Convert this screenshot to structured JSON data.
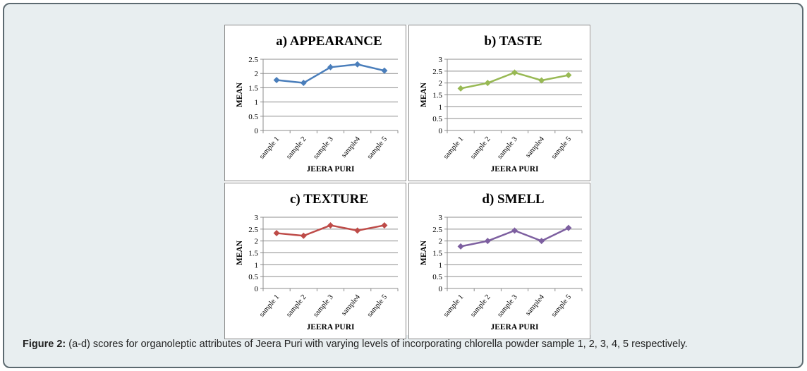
{
  "caption": {
    "label": "Figure 2:",
    "text": " (a-d) scores for organoleptic attributes of Jeera Puri with varying levels of incorporating chlorella powder sample 1, 2, 3, 4, 5 respectively."
  },
  "chart_data": [
    {
      "type": "line",
      "title": "a) APPEARANCE",
      "xlabel": "JEERA PURI",
      "ylabel": "MEAN",
      "categories": [
        "sample 1",
        "sample 2",
        "sample 3",
        "sample4",
        "sample 5"
      ],
      "series": [
        {
          "values": [
            1.77,
            1.67,
            2.22,
            2.32,
            2.1
          ]
        }
      ],
      "ylim": [
        0,
        2.5
      ],
      "yticks": [
        "0",
        "0.5",
        "1",
        "1.5",
        "2",
        "2.5"
      ],
      "ytick_values": [
        0,
        0.5,
        1,
        1.5,
        2,
        2.5
      ],
      "color": "#4a7ebb",
      "marker": "diamond",
      "grid": true
    },
    {
      "type": "line",
      "title": "b) TASTE",
      "xlabel": "JEERA PURI",
      "ylabel": "MEAN",
      "categories": [
        "sample 1",
        "sample 2",
        "sample 3",
        "sample4",
        "sample 5"
      ],
      "series": [
        {
          "values": [
            1.77,
            2.0,
            2.44,
            2.11,
            2.33
          ]
        }
      ],
      "ylim": [
        0,
        3
      ],
      "yticks": [
        "0",
        "0.5",
        "1",
        "1.5",
        "2",
        "2.5",
        "3"
      ],
      "ytick_values": [
        0,
        0.5,
        1,
        1.5,
        2,
        2.5,
        3
      ],
      "color": "#98b954",
      "marker": "diamond",
      "grid": true
    },
    {
      "type": "line",
      "title": "c) TEXTURE",
      "xlabel": "JEERA PURI",
      "ylabel": "MEAN",
      "categories": [
        "sample 1",
        "sample 2",
        "sample 3",
        "sample4",
        "sample 5"
      ],
      "series": [
        {
          "values": [
            2.33,
            2.22,
            2.66,
            2.44,
            2.66
          ]
        }
      ],
      "ylim": [
        0,
        3
      ],
      "yticks": [
        "0",
        "0.5",
        "1",
        "1.5",
        "2",
        "2.5",
        "3"
      ],
      "ytick_values": [
        0,
        0.5,
        1,
        1.5,
        2,
        2.5,
        3
      ],
      "color": "#be4b48",
      "marker": "diamond",
      "grid": true
    },
    {
      "type": "line",
      "title": "d) SMELL",
      "xlabel": "JEERA PURI",
      "ylabel": "MEAN",
      "categories": [
        "sample 1",
        "sample 2",
        "sample 3",
        "sample4",
        "sample 5"
      ],
      "series": [
        {
          "values": [
            1.77,
            2.0,
            2.44,
            2.0,
            2.55
          ]
        }
      ],
      "ylim": [
        0,
        3
      ],
      "yticks": [
        "0",
        "0.5",
        "1",
        "1.5",
        "2",
        "2.5",
        "3"
      ],
      "ytick_values": [
        0,
        0.5,
        1,
        1.5,
        2,
        2.5,
        3
      ],
      "color": "#7d5fa0",
      "marker": "diamond",
      "grid": true
    }
  ]
}
